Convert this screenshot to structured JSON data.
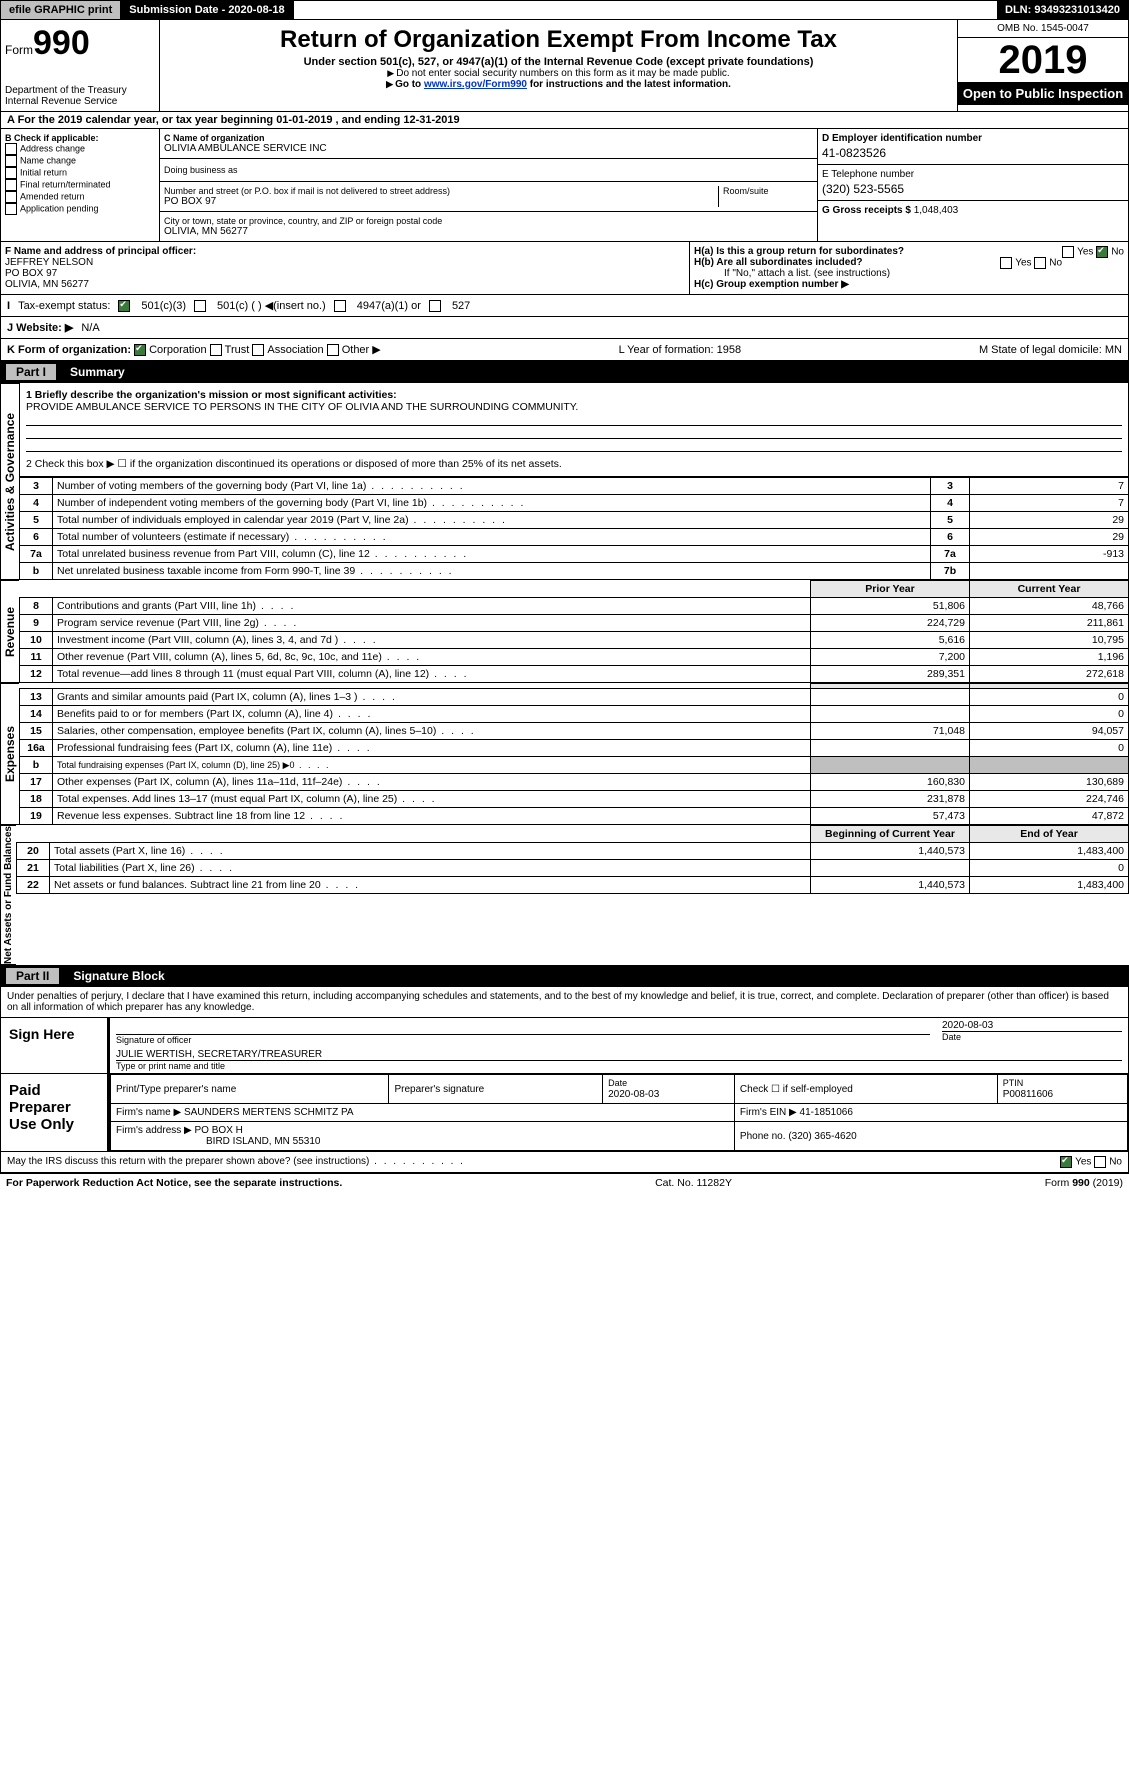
{
  "top": {
    "efile": "efile GRAPHIC print",
    "submission_label": "Submission Date - 2020-08-18",
    "dln": "DLN: 93493231013420"
  },
  "header": {
    "form_small": "Form",
    "form_big": "990",
    "title": "Return of Organization Exempt From Income Tax",
    "subtitle": "Under section 501(c), 527, or 4947(a)(1) of the Internal Revenue Code (except private foundations)",
    "note1": "Do not enter social security numbers on this form as it may be made public.",
    "note2_pre": "Go to ",
    "note2_link": "www.irs.gov/Form990",
    "note2_post": " for instructions and the latest information.",
    "dept": "Department of the Treasury",
    "irs": "Internal Revenue Service",
    "omb": "OMB No. 1545-0047",
    "year": "2019",
    "open": "Open to Public Inspection"
  },
  "rowA": "A For the 2019 calendar year, or tax year beginning 01-01-2019   , and ending 12-31-2019",
  "B": {
    "header": "B Check if applicable:",
    "addr": "Address change",
    "name": "Name change",
    "init": "Initial return",
    "final": "Final return/terminated",
    "amend": "Amended return",
    "app": "Application pending"
  },
  "C": {
    "name_label": "C Name of organization",
    "name": "OLIVIA AMBULANCE SERVICE INC",
    "dba": "Doing business as",
    "street_label": "Number and street (or P.O. box if mail is not delivered to street address)",
    "room_label": "Room/suite",
    "street": "PO BOX 97",
    "city_label": "City or town, state or province, country, and ZIP or foreign postal code",
    "city": "OLIVIA, MN  56277"
  },
  "D": {
    "label": "D Employer identification number",
    "value": "41-0823526"
  },
  "E": {
    "label": "E Telephone number",
    "value": "(320) 523-5565"
  },
  "G": {
    "label": "G Gross receipts $",
    "value": "1,048,403"
  },
  "F": {
    "label": "F  Name and address of principal officer:",
    "name": "JEFFREY NELSON",
    "addr1": "PO BOX 97",
    "addr2": "OLIVIA, MN  56277"
  },
  "H": {
    "a": "H(a)  Is this a group return for subordinates?",
    "b": "H(b)  Are all subordinates included?",
    "b_note": "If \"No,\" attach a list. (see instructions)",
    "c": "H(c)  Group exemption number ▶",
    "yes": "Yes",
    "no": "No"
  },
  "I": {
    "label": "Tax-exempt status:",
    "c3": "501(c)(3)",
    "c": "501(c) (  ) ◀(insert no.)",
    "a1": "4947(a)(1) or",
    "527": "527"
  },
  "J": {
    "label": "J Website: ▶",
    "value": "N/A"
  },
  "K": {
    "label": "K Form of organization:",
    "corp": "Corporation",
    "trust": "Trust",
    "assoc": "Association",
    "other": "Other ▶",
    "L": "L Year of formation: 1958",
    "M": "M State of legal domicile: MN"
  },
  "part1": {
    "title": "Part I",
    "name": "Summary",
    "l1": "1  Briefly describe the organization's mission or most significant activities:",
    "mission": "PROVIDE AMBULANCE SERVICE TO PERSONS IN THE CITY OF OLIVIA AND THE SURROUNDING COMMUNITY.",
    "l2": "2  Check this box ▶ ☐  if the organization discontinued its operations or disposed of more than 25% of its net assets.",
    "rows_gov": [
      {
        "n": "3",
        "t": "Number of voting members of the governing body (Part VI, line 1a)",
        "b": "3",
        "v": "7"
      },
      {
        "n": "4",
        "t": "Number of independent voting members of the governing body (Part VI, line 1b)",
        "b": "4",
        "v": "7"
      },
      {
        "n": "5",
        "t": "Total number of individuals employed in calendar year 2019 (Part V, line 2a)",
        "b": "5",
        "v": "29"
      },
      {
        "n": "6",
        "t": "Total number of volunteers (estimate if necessary)",
        "b": "6",
        "v": "29"
      },
      {
        "n": "7a",
        "t": "Total unrelated business revenue from Part VIII, column (C), line 12",
        "b": "7a",
        "v": "-913"
      },
      {
        "n": "b",
        "t": "Net unrelated business taxable income from Form 990-T, line 39",
        "b": "7b",
        "v": ""
      }
    ],
    "prior": "Prior Year",
    "current": "Current Year",
    "rows_rev": [
      {
        "n": "8",
        "t": "Contributions and grants (Part VIII, line 1h)",
        "p": "51,806",
        "c": "48,766"
      },
      {
        "n": "9",
        "t": "Program service revenue (Part VIII, line 2g)",
        "p": "224,729",
        "c": "211,861"
      },
      {
        "n": "10",
        "t": "Investment income (Part VIII, column (A), lines 3, 4, and 7d )",
        "p": "5,616",
        "c": "10,795"
      },
      {
        "n": "11",
        "t": "Other revenue (Part VIII, column (A), lines 5, 6d, 8c, 9c, 10c, and 11e)",
        "p": "7,200",
        "c": "1,196"
      },
      {
        "n": "12",
        "t": "Total revenue—add lines 8 through 11 (must equal Part VIII, column (A), line 12)",
        "p": "289,351",
        "c": "272,618"
      }
    ],
    "rows_exp": [
      {
        "n": "13",
        "t": "Grants and similar amounts paid (Part IX, column (A), lines 1–3 )",
        "p": "",
        "c": "0"
      },
      {
        "n": "14",
        "t": "Benefits paid to or for members (Part IX, column (A), line 4)",
        "p": "",
        "c": "0"
      },
      {
        "n": "15",
        "t": "Salaries, other compensation, employee benefits (Part IX, column (A), lines 5–10)",
        "p": "71,048",
        "c": "94,057"
      },
      {
        "n": "16a",
        "t": "Professional fundraising fees (Part IX, column (A), line 11e)",
        "p": "",
        "c": "0"
      },
      {
        "n": "b",
        "t": "Total fundraising expenses (Part IX, column (D), line 25) ▶0",
        "p": "—",
        "c": "—"
      },
      {
        "n": "17",
        "t": "Other expenses (Part IX, column (A), lines 11a–11d, 11f–24e)",
        "p": "160,830",
        "c": "130,689"
      },
      {
        "n": "18",
        "t": "Total expenses. Add lines 13–17 (must equal Part IX, column (A), line 25)",
        "p": "231,878",
        "c": "224,746"
      },
      {
        "n": "19",
        "t": "Revenue less expenses. Subtract line 18 from line 12",
        "p": "57,473",
        "c": "47,872"
      }
    ],
    "bcy": "Beginning of Current Year",
    "eoy": "End of Year",
    "rows_net": [
      {
        "n": "20",
        "t": "Total assets (Part X, line 16)",
        "p": "1,440,573",
        "c": "1,483,400"
      },
      {
        "n": "21",
        "t": "Total liabilities (Part X, line 26)",
        "p": "",
        "c": "0"
      },
      {
        "n": "22",
        "t": "Net assets or fund balances. Subtract line 21 from line 20",
        "p": "1,440,573",
        "c": "1,483,400"
      }
    ]
  },
  "part2": {
    "title": "Part II",
    "name": "Signature Block"
  },
  "perjury": "Under penalties of perjury, I declare that I have examined this return, including accompanying schedules and statements, and to the best of my knowledge and belief, it is true, correct, and complete. Declaration of preparer (other than officer) is based on all information of which preparer has any knowledge.",
  "sign": {
    "here": "Sign Here",
    "sig_officer": "Signature of officer",
    "date": "2020-08-03",
    "date_lbl": "Date",
    "name": "JULIE WERTISH, SECRETARY/TREASURER",
    "type": "Type or print name and title"
  },
  "paid": {
    "title": "Paid Preparer Use Only",
    "h1": "Print/Type preparer's name",
    "h2": "Preparer's signature",
    "h3": "Date",
    "date": "2020-08-03",
    "h4": "Check ☐ if self-employed",
    "h5": "PTIN",
    "ptin": "P00811606",
    "firm_lbl": "Firm's name   ▶",
    "firm": "SAUNDERS MERTENS SCHMITZ PA",
    "ein_lbl": "Firm's EIN ▶",
    "ein": "41-1851066",
    "addr_lbl": "Firm's address ▶",
    "addr": "PO BOX H",
    "addr2": "BIRD ISLAND, MN  55310",
    "phone_lbl": "Phone no.",
    "phone": "(320) 365-4620"
  },
  "discuss": "May the IRS discuss this return with the preparer shown above? (see instructions)",
  "footer": {
    "pra": "For Paperwork Reduction Act Notice, see the separate instructions.",
    "cat": "Cat. No. 11282Y",
    "form": "Form 990 (2019)"
  },
  "labels": {
    "gov": "Activities & Governance",
    "rev": "Revenue",
    "exp": "Expenses",
    "net": "Net Assets or Fund Balances"
  }
}
